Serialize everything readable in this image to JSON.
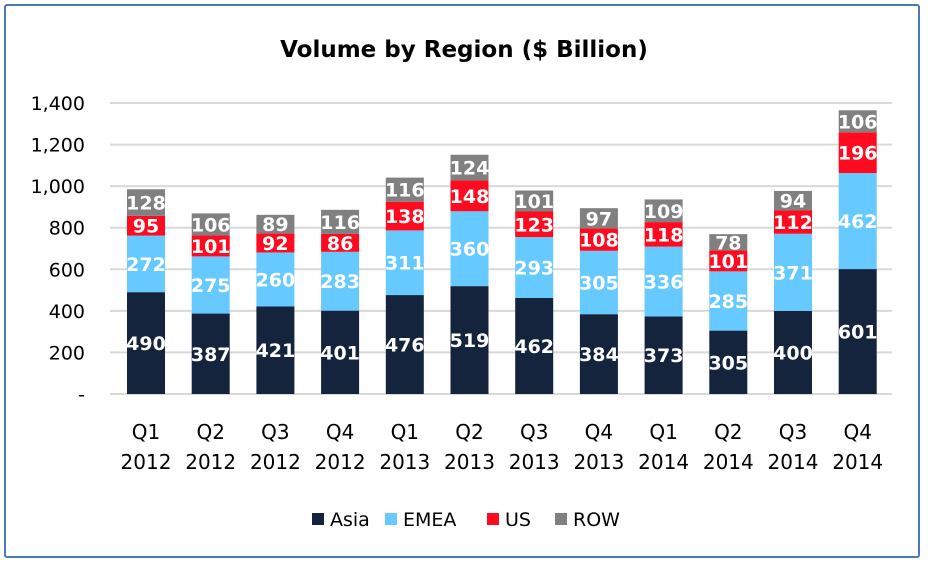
{
  "chart_data": {
    "type": "bar",
    "stacked": true,
    "title": "Volume by Region ($ Billion)",
    "xlabel": "",
    "ylabel": "",
    "ylim": [
      0,
      1400
    ],
    "yticks": [
      0,
      200,
      400,
      600,
      800,
      1000,
      1200,
      1400
    ],
    "ytick_labels": [
      "-",
      "200",
      "400",
      "600",
      "800",
      "1,000",
      "1,200",
      "1,400"
    ],
    "grid": true,
    "legend_position": "bottom",
    "categories": [
      [
        "Q1",
        "2012"
      ],
      [
        "Q2",
        "2012"
      ],
      [
        "Q3",
        "2012"
      ],
      [
        "Q4",
        "2012"
      ],
      [
        "Q1",
        "2013"
      ],
      [
        "Q2",
        "2013"
      ],
      [
        "Q3",
        "2013"
      ],
      [
        "Q4",
        "2013"
      ],
      [
        "Q1",
        "2014"
      ],
      [
        "Q2",
        "2014"
      ],
      [
        "Q3",
        "2014"
      ],
      [
        "Q4",
        "2014"
      ]
    ],
    "series": [
      {
        "name": "Asia",
        "color": "#14243d",
        "values": [
          490,
          387,
          421,
          401,
          476,
          519,
          462,
          384,
          373,
          305,
          400,
          601
        ]
      },
      {
        "name": "EMEA",
        "color": "#66c9ff",
        "values": [
          272,
          275,
          260,
          283,
          311,
          360,
          293,
          305,
          336,
          285,
          371,
          462
        ]
      },
      {
        "name": "US",
        "color": "#ff0a1f",
        "values": [
          95,
          101,
          92,
          86,
          138,
          148,
          123,
          108,
          118,
          101,
          112,
          196
        ]
      },
      {
        "name": "ROW",
        "color": "#808080",
        "values": [
          128,
          106,
          89,
          116,
          116,
          124,
          101,
          97,
          109,
          78,
          94,
          106
        ]
      }
    ]
  }
}
